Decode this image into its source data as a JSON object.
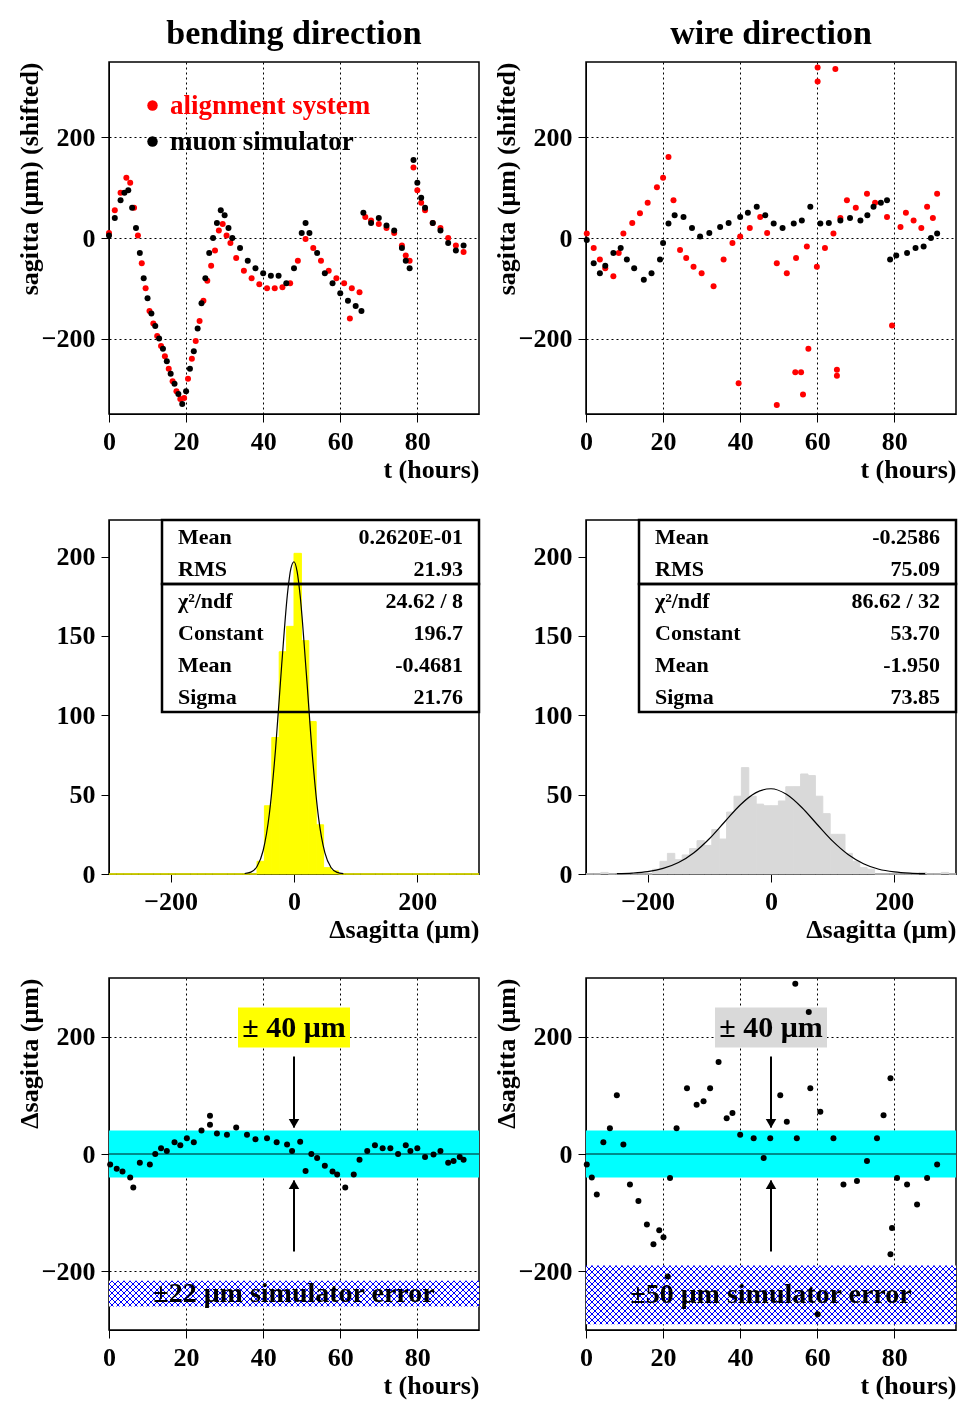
{
  "chart_data": [
    {
      "type": "scatter",
      "title": "bending direction",
      "xlabel": "t (hours)",
      "ylabel": "sagitta (μm) (shifted)",
      "xlim": [
        0,
        96
      ],
      "xticks": [
        0,
        20,
        40,
        60,
        80
      ],
      "ylim": [
        -350,
        350
      ],
      "yticks": [
        -200,
        0,
        200
      ],
      "grid": true,
      "legend": "top left",
      "marker": "circle",
      "series": [
        {
          "name": "alignment system",
          "color": "#ff0000",
          "x": [
            0,
            1.5,
            3,
            4.5,
            5.5,
            6.5,
            7.5,
            8.5,
            9.5,
            10.5,
            11.5,
            12.5,
            13.5,
            14.5,
            15.5,
            16.5,
            17.5,
            18.5,
            19.5,
            20.5,
            21.5,
            22.5,
            23.5,
            24.5,
            25.5,
            26.5,
            27.5,
            28.5,
            29.5,
            30.5,
            31.5,
            33,
            35,
            37,
            39,
            41,
            43,
            45,
            47,
            49,
            51,
            53,
            55,
            57,
            59,
            61,
            62.5,
            63,
            65,
            66.5,
            68,
            70,
            72,
            74,
            76,
            77,
            78,
            79,
            80,
            81,
            82,
            84,
            86,
            88,
            90,
            92
          ],
          "values": [
            10,
            55,
            90,
            120,
            110,
            60,
            5,
            -50,
            -100,
            -145,
            -170,
            -195,
            -215,
            -235,
            -260,
            -285,
            -305,
            -320,
            -318,
            -280,
            -240,
            -205,
            -165,
            -125,
            -85,
            -55,
            -25,
            15,
            28,
            5,
            -10,
            -40,
            -65,
            -80,
            -92,
            -100,
            -100,
            -98,
            -90,
            -45,
            -2,
            -20,
            -45,
            -65,
            -80,
            -90,
            -160,
            -100,
            -108,
            42,
            35,
            28,
            20,
            10,
            -15,
            -35,
            -45,
            140,
            95,
            70,
            55,
            30,
            20,
            0,
            -15,
            -28
          ]
        },
        {
          "name": "muon simulator",
          "color": "#000000",
          "x": [
            0,
            1.5,
            3,
            4,
            5,
            6,
            7,
            8,
            9,
            10,
            11,
            12,
            13,
            14,
            15,
            16,
            17,
            18,
            19,
            20,
            21,
            22,
            23,
            24,
            25,
            26,
            27,
            28,
            29,
            30,
            31,
            32,
            34,
            36,
            38,
            40,
            42,
            44,
            46,
            48,
            50,
            51,
            52,
            54,
            56,
            58,
            60,
            62,
            64,
            65.5,
            66,
            68,
            70,
            72,
            74,
            76,
            77,
            78,
            79,
            80,
            81,
            82,
            84,
            86,
            88,
            90,
            92
          ],
          "values": [
            5,
            40,
            75,
            90,
            95,
            60,
            20,
            -30,
            -80,
            -120,
            -150,
            -175,
            -200,
            -220,
            -245,
            -270,
            -290,
            -310,
            -330,
            -305,
            -260,
            -225,
            -180,
            -130,
            -80,
            -30,
            0,
            30,
            55,
            45,
            20,
            0,
            -20,
            -45,
            -60,
            -70,
            -75,
            -75,
            -90,
            -60,
            10,
            30,
            10,
            -30,
            -70,
            -90,
            -110,
            -125,
            -135,
            -145,
            50,
            30,
            40,
            25,
            15,
            -20,
            -45,
            -60,
            155,
            110,
            80,
            60,
            30,
            15,
            -10,
            -25,
            -15
          ]
        }
      ]
    },
    {
      "type": "scatter",
      "title": "wire direction",
      "xlabel": "t (hours)",
      "ylabel": "sagitta (μm) (shifted)",
      "xlim": [
        0,
        96
      ],
      "xticks": [
        0,
        20,
        40,
        60,
        80
      ],
      "ylim": [
        -350,
        350
      ],
      "yticks": [
        -200,
        0,
        200
      ],
      "grid": true,
      "marker": "circle",
      "series": [
        {
          "color": "#ff0000",
          "x": [
            0.2,
            2,
            3.6,
            5,
            7.1,
            8.5,
            9.7,
            12,
            14,
            16,
            18.4,
            20,
            21.4,
            22.7,
            24.4,
            26,
            27.9,
            30,
            33.1,
            35.7,
            38,
            40,
            42.5,
            45.2,
            47,
            49.5,
            52.1,
            54.5,
            57.3,
            59.9,
            62,
            64.2,
            66,
            67.7,
            70,
            72.9,
            75,
            78.1,
            79.4,
            81.6,
            83,
            85,
            87,
            88.5,
            90,
            91.1,
            39.6,
            49.5,
            54.3,
            55.8,
            56.3,
            57.7,
            60.1,
            60.1,
            64.7,
            65.1,
            65.1
          ],
          "values": [
            9,
            -20,
            -43,
            -60,
            -76,
            -30,
            9,
            30,
            49,
            70,
            101,
            120,
            161,
            75,
            -24,
            -40,
            -57,
            -70,
            -96,
            -43,
            -10,
            3,
            20,
            42,
            10,
            -50,
            -70,
            -40,
            -17,
            -57,
            -20,
            9,
            40,
            75,
            60,
            88,
            70,
            42,
            -174,
            22,
            50,
            35,
            20,
            62,
            40,
            88,
            -289,
            -332,
            -267,
            -267,
            -311,
            -220,
            339,
            311,
            336,
            -262,
            -274
          ]
        },
        {
          "color": "#000000",
          "x": [
            0.2,
            2,
            3.6,
            5,
            7.1,
            9,
            10.6,
            12.5,
            15,
            17,
            19.2,
            20,
            21.4,
            23,
            25.3,
            27.5,
            29.6,
            32,
            34.8,
            37,
            40,
            42,
            44.3,
            46.5,
            48.7,
            51,
            53.9,
            56,
            58.2,
            60.8,
            63,
            66,
            68.5,
            71.2,
            73,
            74.6,
            76.5,
            78.1,
            78.9,
            80.5,
            83.3,
            85.5,
            87.6,
            89.5,
            91.1
          ],
          "values": [
            -4,
            -50,
            -70,
            -55,
            -30,
            -20,
            -43,
            -60,
            -83,
            -70,
            -43,
            -10,
            29,
            45,
            42,
            20,
            3,
            10,
            22,
            30,
            42,
            50,
            62,
            45,
            29,
            20,
            29,
            35,
            62,
            29,
            30,
            35,
            40,
            35,
            45,
            62,
            70,
            75,
            -43,
            -35,
            -30,
            -20,
            -17,
            0,
            9
          ]
        }
      ]
    },
    {
      "type": "histogram",
      "xlabel": "Δsagitta (μm)",
      "xlim": [
        -300,
        300
      ],
      "xticks": [
        -200,
        0,
        200
      ],
      "ylim": [
        0,
        223
      ],
      "yticks": [
        0,
        50,
        100,
        150,
        200
      ],
      "bins": [
        -300,
        -288,
        -276,
        -264,
        -252,
        -240,
        -228,
        -216,
        -204,
        -192,
        -180,
        -168,
        -156,
        -144,
        -132,
        -120,
        -108,
        -96,
        -84,
        -72,
        -60,
        -48,
        -36,
        -24,
        -12,
        0,
        12,
        24,
        36,
        48,
        60,
        72,
        84,
        96,
        108,
        120,
        132,
        144,
        156,
        168,
        180,
        192,
        204,
        216,
        228,
        240,
        252,
        264,
        276,
        288,
        300
      ],
      "annotations": [
        "Mean",
        "0.2620E-01",
        "RMS",
        "21.93",
        "χ²/ndf",
        "24.62   /   8",
        "Constant",
        "196.7",
        "Mean",
        "-0.4681",
        "Sigma",
        "21.76"
      ],
      "series": [
        {
          "type": "histogram",
          "color": "#ffff00",
          "values": [
            0,
            0,
            0,
            0,
            0,
            0,
            0,
            0,
            0,
            0,
            0,
            0,
            0,
            0,
            0,
            0,
            0,
            0,
            0,
            0,
            8,
            43,
            86,
            140,
            156,
            202,
            147,
            96,
            31,
            4,
            2,
            0,
            0,
            0,
            0,
            0,
            0,
            0,
            0,
            0,
            0,
            0,
            0,
            0,
            0,
            0,
            0,
            0,
            0,
            0
          ]
        },
        {
          "type": "line",
          "color": "#000000",
          "x": [
            -80,
            -70,
            -60,
            -50,
            -40,
            -30,
            -20,
            -10,
            -5,
            0,
            5,
            10,
            20,
            30,
            40,
            50,
            60,
            70,
            80
          ],
          "values": [
            0.3,
            1.2,
            4.7,
            14.8,
            37.8,
            78.3,
            131.5,
            178.7,
            192.5,
            196.7,
            190.6,
            175.2,
            126.4,
            73.8,
            34.9,
            13.4,
            4.1,
            1.0,
            0.2
          ]
        }
      ]
    },
    {
      "type": "histogram",
      "xlabel": "Δsagitta (μm)",
      "xlim": [
        -300,
        300
      ],
      "xticks": [
        -200,
        0,
        200
      ],
      "ylim": [
        0,
        223
      ],
      "yticks": [
        0,
        50,
        100,
        150,
        200
      ],
      "bins": [
        -300,
        -288,
        -276,
        -264,
        -252,
        -240,
        -228,
        -216,
        -204,
        -192,
        -180,
        -168,
        -156,
        -144,
        -132,
        -120,
        -108,
        -96,
        -84,
        -72,
        -60,
        -48,
        -36,
        -24,
        -12,
        0,
        12,
        24,
        36,
        48,
        60,
        72,
        84,
        96,
        108,
        120,
        132,
        144,
        156,
        168,
        180,
        192,
        204,
        216,
        228,
        240,
        252,
        264,
        276,
        288,
        300
      ],
      "annotations": [
        "Mean",
        "-0.2586",
        "RMS",
        "75.09",
        "χ²/ndf",
        "86.62   /   32",
        "Constant",
        "53.70",
        "Mean",
        "-1.950",
        "Sigma",
        "73.85"
      ],
      "series": [
        {
          "type": "histogram",
          "color": "#d9d9d9",
          "values": [
            0,
            0,
            1,
            0,
            0,
            0,
            0,
            0,
            0,
            3,
            8,
            13,
            9,
            12,
            16,
            21,
            18,
            28,
            22,
            39,
            49,
            67,
            49,
            44,
            43,
            43,
            46,
            55,
            55,
            63,
            62,
            49,
            38,
            25,
            25,
            13,
            8,
            4,
            3,
            0,
            0,
            0,
            0,
            0,
            0,
            1,
            0,
            0,
            1,
            0
          ]
        },
        {
          "type": "line",
          "color": "#000000",
          "x": [
            -250,
            -225,
            -200,
            -175,
            -150,
            -125,
            -100,
            -75,
            -50,
            -25,
            0,
            25,
            50,
            75,
            100,
            125,
            150,
            175,
            200,
            225,
            250
          ],
          "values": [
            0.2,
            0.6,
            1.5,
            3.5,
            7.2,
            13.4,
            22.2,
            32.9,
            43.5,
            51.1,
            53.7,
            50.2,
            41.9,
            31.2,
            20.7,
            12.3,
            6.5,
            3.0,
            1.3,
            0.5,
            0.2
          ]
        }
      ]
    },
    {
      "type": "scatter",
      "xlabel": "t (hours)",
      "ylabel": "Δsagitta (μm)",
      "xlim": [
        0,
        96
      ],
      "xticks": [
        0,
        20,
        40,
        60,
        80
      ],
      "ylim": [
        -300,
        300
      ],
      "yticks": [
        -200,
        0,
        200
      ],
      "grid": true,
      "marker": "circle",
      "bands": [
        {
          "axis": "y",
          "from": -40,
          "to": 40,
          "color": "#00ffff"
        },
        {
          "axis": "y",
          "from": -260,
          "to": -216,
          "color": "#0000ff",
          "label": "±22 μm simulator error"
        }
      ],
      "ref_lines": [
        {
          "axis": "y",
          "value": 0,
          "color": "#006666"
        }
      ],
      "annotations": [
        {
          "text": "± 40 μm",
          "x": 48,
          "y": 40
        }
      ],
      "series": [
        {
          "color": "#000000",
          "x": [
            0.3,
            2,
            3.5,
            5.5,
            6.3,
            8,
            10.6,
            12,
            13.5,
            15,
            17,
            18.5,
            20.2,
            22,
            24,
            26.2,
            26.2,
            28,
            30.6,
            33,
            35.8,
            38,
            41,
            43.5,
            46.2,
            47.5,
            49.6,
            51,
            52.5,
            54,
            56,
            58,
            59.2,
            61.3,
            63.5,
            65,
            67,
            69,
            71,
            73,
            75,
            77,
            78.2,
            80,
            82,
            84.2,
            86,
            88,
            89.4,
            91,
            92
          ],
          "values": [
            -18,
            -25,
            -30,
            -40,
            -57,
            -15,
            -18,
            0,
            10,
            5,
            20,
            15,
            27,
            20,
            40,
            50,
            65,
            35,
            33,
            45,
            33,
            25,
            27,
            20,
            16,
            5,
            21,
            -29,
            0,
            -7,
            -20,
            -30,
            -35,
            -57,
            -35,
            -10,
            5,
            15,
            10,
            10,
            0,
            15,
            5,
            10,
            -5,
            -1,
            5,
            -15,
            -12,
            -5,
            -10
          ]
        }
      ]
    },
    {
      "type": "scatter",
      "xlabel": "t (hours)",
      "ylabel": "Δsagitta (μm)",
      "xlim": [
        0,
        96
      ],
      "xticks": [
        0,
        20,
        40,
        60,
        80
      ],
      "ylim": [
        -300,
        300
      ],
      "yticks": [
        -200,
        0,
        200
      ],
      "grid": true,
      "marker": "circle",
      "bands": [
        {
          "axis": "y",
          "from": -40,
          "to": 40,
          "color": "#00ffff"
        },
        {
          "axis": "y",
          "from": -290,
          "to": -190,
          "color": "#0000ff",
          "label": "±50 μm simulator error"
        }
      ],
      "ref_lines": [
        {
          "axis": "y",
          "value": 0,
          "color": "#006666"
        }
      ],
      "annotations": [
        {
          "text": "± 40 μm",
          "x": 48,
          "y": 40
        }
      ],
      "series": [
        {
          "color": "#000000",
          "x": [
            0.2,
            1.5,
            2.8,
            4.5,
            6.2,
            8,
            9.7,
            11.4,
            13.6,
            15.8,
            17.5,
            19,
            20.1,
            21.2,
            21.8,
            23.5,
            26.2,
            28.7,
            30.5,
            32.2,
            34.4,
            36.5,
            38,
            40,
            43.5,
            46.1,
            47.8,
            50.4,
            52.1,
            54.3,
            54.7,
            57.8,
            58.2,
            60.8,
            64.2,
            66.8,
            70.3,
            72.9,
            75.5,
            77.2,
            79,
            79,
            79.4,
            80.7,
            83.3,
            85.9,
            88.5,
            91.1,
            60.1
          ],
          "values": [
            -18,
            -40,
            -69,
            20,
            44,
            100,
            16,
            -52,
            -80,
            -120,
            -154,
            -130,
            -142,
            -209,
            -41,
            44,
            112,
            84,
            90,
            112,
            157,
            61,
            70,
            33,
            27,
            -7,
            27,
            100,
            55,
            290,
            27,
            242,
            112,
            72,
            27,
            -52,
            -46,
            -12,
            27,
            66,
            129,
            -171,
            -126,
            -41,
            -52,
            -86,
            -41,
            -18,
            -273
          ]
        }
      ]
    }
  ]
}
